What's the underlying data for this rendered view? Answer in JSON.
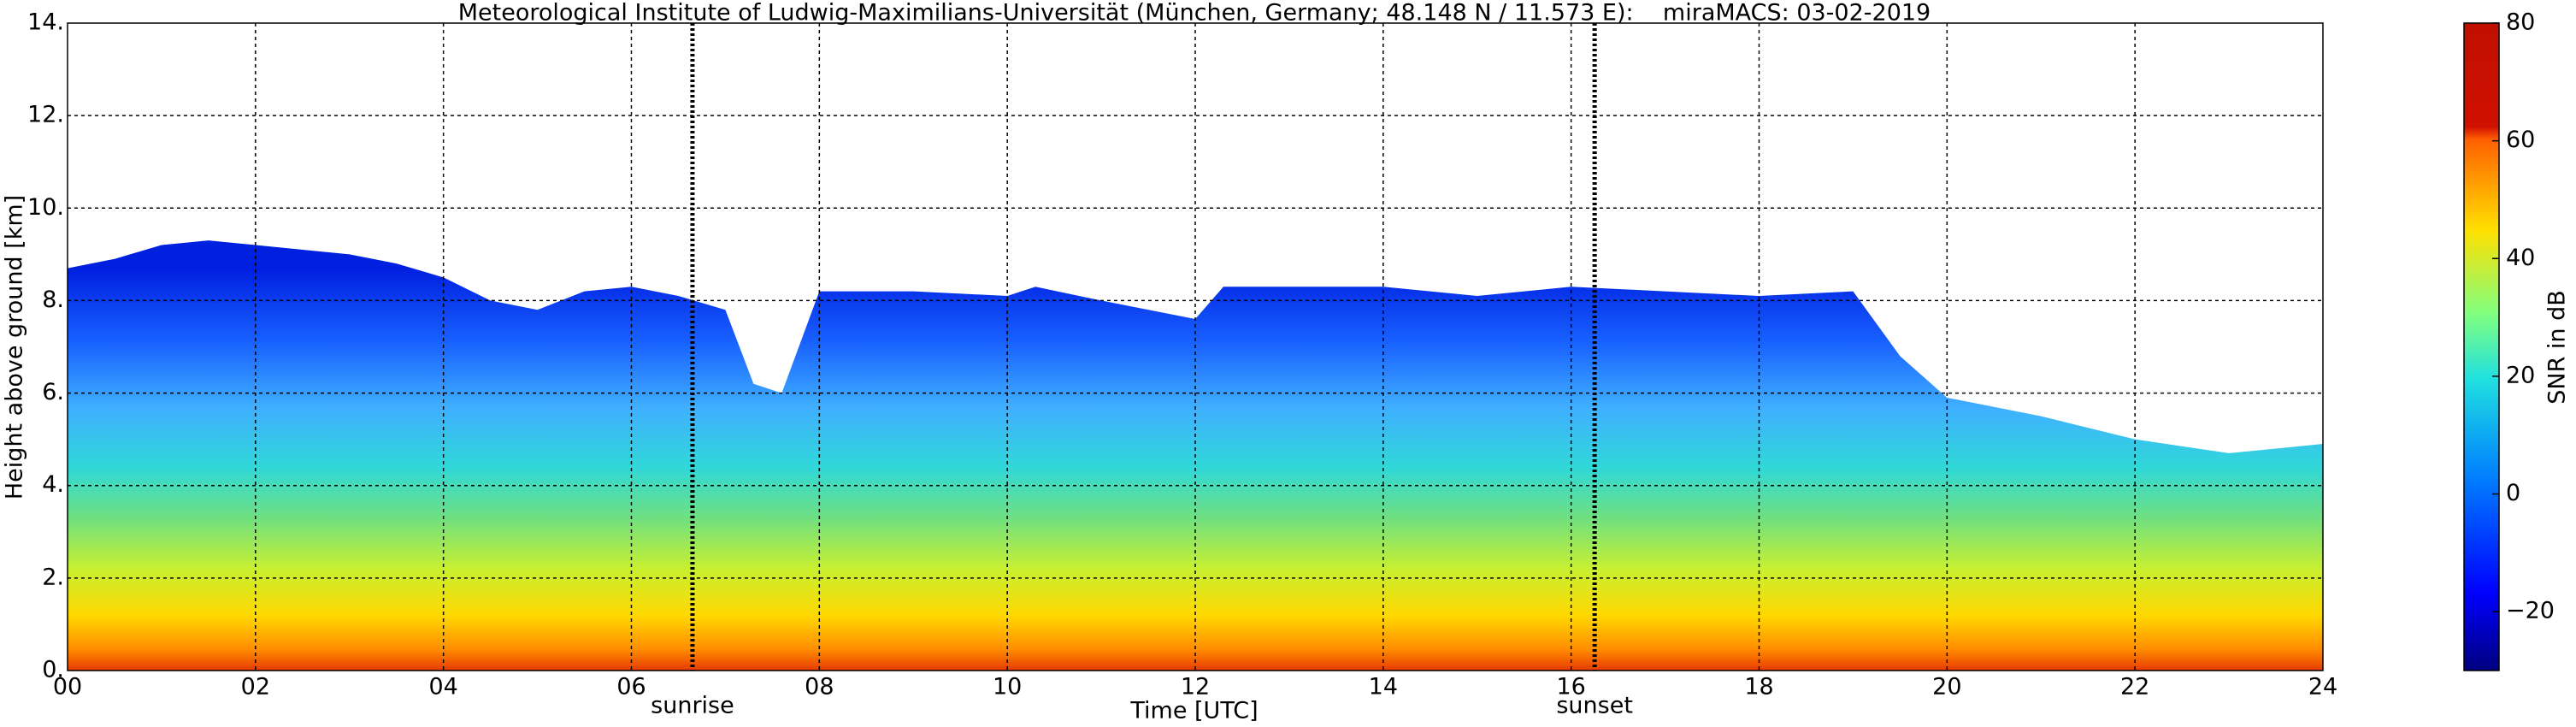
{
  "chart_data": {
    "type": "area",
    "title": "Meteorological Institute of Ludwig-Maximilians-Universität (München, Germany; 48.148 N / 11.573 E):    miraMACS: 03-02-2019",
    "x_label": "Time [UTC]",
    "y_label": "Height above ground [km]",
    "x": [
      0,
      0.5,
      1,
      1.5,
      2,
      3,
      3.5,
      4,
      4.5,
      5,
      5.5,
      6,
      6.5,
      7,
      7.3,
      7.6,
      8,
      9,
      10,
      10.3,
      11,
      12,
      12.3,
      13,
      14,
      15,
      16,
      17,
      18,
      19,
      19.5,
      20,
      21,
      22,
      23,
      24
    ],
    "values": [
      8.7,
      8.9,
      9.2,
      9.3,
      9.2,
      9.0,
      8.8,
      8.5,
      8.0,
      7.8,
      8.2,
      8.3,
      8.1,
      7.8,
      6.2,
      6.0,
      8.2,
      8.2,
      8.1,
      8.3,
      8.0,
      7.6,
      8.3,
      8.3,
      8.3,
      8.1,
      8.3,
      8.2,
      8.1,
      8.2,
      6.8,
      5.9,
      5.5,
      5.0,
      4.7,
      4.9
    ],
    "xlim": [
      0,
      24
    ],
    "xticks": [
      {
        "value": 0,
        "label": "00"
      },
      {
        "value": 2,
        "label": "02"
      },
      {
        "value": 4,
        "label": "04"
      },
      {
        "value": 6,
        "label": "06"
      },
      {
        "value": 8,
        "label": "08"
      },
      10,
      12,
      14,
      16,
      18,
      20,
      22,
      24
    ],
    "ylim": [
      0,
      14
    ],
    "yticks": [
      {
        "value": 0,
        "label": "0."
      },
      {
        "value": 2,
        "label": "2."
      },
      {
        "value": 4,
        "label": "4."
      },
      {
        "value": 6,
        "label": "6."
      },
      {
        "value": 8,
        "label": "8."
      },
      {
        "value": 10,
        "label": "10."
      },
      {
        "value": 12,
        "label": "12."
      },
      {
        "value": 14,
        "label": "14."
      }
    ],
    "grid": true,
    "annotations": [
      {
        "text": "sunrise",
        "x": 6.65
      },
      {
        "text": "sunset",
        "x": 16.25
      }
    ],
    "colorbar": {
      "label": "SNR in dB",
      "clim": [
        -30,
        80
      ],
      "ticks": [
        {
          "value": -20,
          "label": "−20"
        },
        0,
        20,
        40,
        60,
        80
      ]
    }
  }
}
